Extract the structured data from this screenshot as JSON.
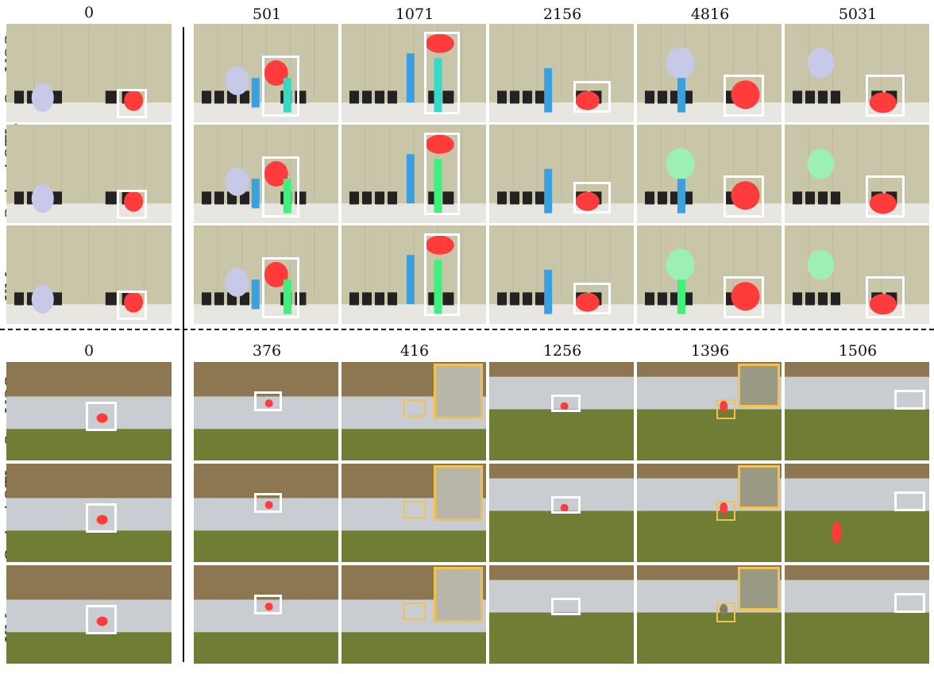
{
  "top_frames": [
    "0",
    "501",
    "1071",
    "2156",
    "4816",
    "5031"
  ],
  "bottom_frames": [
    "0",
    "376",
    "416",
    "1256",
    "1396",
    "1506"
  ],
  "methods": [
    "OneVOS",
    "Swin-AOTL",
    "XMem"
  ],
  "colors": {
    "stage_wall": "#c9c5a8",
    "stage_floor": "#e8e6e0",
    "target_red": "#ff3b3b",
    "seg_green": "#3ff07a",
    "seg_cyan": "#37d9c6",
    "dancer_blue": "#3aa0e0",
    "umbrella_lavender": "#c8c8e8",
    "grass": "#6f7d35",
    "water": "#c9cdd2",
    "dirt": "#8d7652",
    "box_white": "#ffffff",
    "zoom_yellow": "#f2c14e"
  }
}
